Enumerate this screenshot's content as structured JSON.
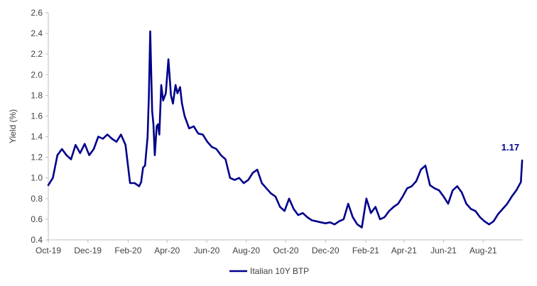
{
  "chart_data": {
    "type": "line",
    "title": "",
    "xlabel": "",
    "ylabel": "Yield (%)",
    "ylim": [
      0.4,
      2.6
    ],
    "y_ticks": [
      "0.4",
      "0.6",
      "0.8",
      "1.0",
      "1.2",
      "1.4",
      "1.6",
      "1.8",
      "2.0",
      "2.2",
      "2.4",
      "2.6"
    ],
    "x_ticks": [
      "Oct-19",
      "Dec-19",
      "Feb-20",
      "Apr-20",
      "Jun-20",
      "Aug-20",
      "Oct-20",
      "Dec-20",
      "Feb-21",
      "Apr-21",
      "Jun-21",
      "Aug-21"
    ],
    "x_range": [
      "2019-10-01",
      "2021-10-01"
    ],
    "grid": false,
    "legend": "bottom",
    "series_color": "#00008B",
    "series": [
      {
        "name": "Italian 10Y BTP",
        "x": [
          "2019-10-01",
          "2019-10-08",
          "2019-10-15",
          "2019-10-22",
          "2019-10-29",
          "2019-11-05",
          "2019-11-12",
          "2019-11-19",
          "2019-11-26",
          "2019-12-03",
          "2019-12-10",
          "2019-12-17",
          "2019-12-24",
          "2019-12-31",
          "2020-01-07",
          "2020-01-14",
          "2020-01-21",
          "2020-01-28",
          "2020-02-04",
          "2020-02-11",
          "2020-02-18",
          "2020-02-21",
          "2020-02-24",
          "2020-02-27",
          "2020-03-02",
          "2020-03-04",
          "2020-03-06",
          "2020-03-09",
          "2020-03-11",
          "2020-03-13",
          "2020-03-16",
          "2020-03-18",
          "2020-03-20",
          "2020-03-23",
          "2020-03-26",
          "2020-03-30",
          "2020-04-03",
          "2020-04-07",
          "2020-04-10",
          "2020-04-14",
          "2020-04-17",
          "2020-04-21",
          "2020-04-24",
          "2020-04-28",
          "2020-05-05",
          "2020-05-12",
          "2020-05-19",
          "2020-05-26",
          "2020-06-02",
          "2020-06-09",
          "2020-06-16",
          "2020-06-23",
          "2020-06-30",
          "2020-07-07",
          "2020-07-14",
          "2020-07-21",
          "2020-07-28",
          "2020-08-04",
          "2020-08-11",
          "2020-08-18",
          "2020-08-25",
          "2020-09-01",
          "2020-09-08",
          "2020-09-15",
          "2020-09-22",
          "2020-09-29",
          "2020-10-06",
          "2020-10-13",
          "2020-10-20",
          "2020-10-27",
          "2020-11-03",
          "2020-11-10",
          "2020-11-17",
          "2020-11-24",
          "2020-12-01",
          "2020-12-08",
          "2020-12-15",
          "2020-12-22",
          "2020-12-29",
          "2021-01-05",
          "2021-01-12",
          "2021-01-19",
          "2021-01-26",
          "2021-02-02",
          "2021-02-09",
          "2021-02-16",
          "2021-02-23",
          "2021-03-02",
          "2021-03-09",
          "2021-03-16",
          "2021-03-23",
          "2021-03-30",
          "2021-04-06",
          "2021-04-13",
          "2021-04-20",
          "2021-04-27",
          "2021-05-04",
          "2021-05-11",
          "2021-05-18",
          "2021-05-25",
          "2021-06-01",
          "2021-06-08",
          "2021-06-15",
          "2021-06-22",
          "2021-06-29",
          "2021-07-06",
          "2021-07-13",
          "2021-07-20",
          "2021-07-27",
          "2021-08-03",
          "2021-08-10",
          "2021-08-17",
          "2021-08-24",
          "2021-08-31",
          "2021-09-07",
          "2021-09-14",
          "2021-09-21",
          "2021-09-28",
          "2021-09-30"
        ],
        "y": [
          0.93,
          1.0,
          1.22,
          1.28,
          1.22,
          1.18,
          1.32,
          1.24,
          1.33,
          1.22,
          1.28,
          1.4,
          1.38,
          1.42,
          1.38,
          1.35,
          1.42,
          1.32,
          0.95,
          0.95,
          0.92,
          0.96,
          1.1,
          1.12,
          1.4,
          1.8,
          2.42,
          1.65,
          1.52,
          1.22,
          1.5,
          1.52,
          1.42,
          1.9,
          1.75,
          1.82,
          2.15,
          1.8,
          1.72,
          1.9,
          1.82,
          1.88,
          1.72,
          1.6,
          1.48,
          1.5,
          1.43,
          1.42,
          1.35,
          1.3,
          1.28,
          1.22,
          1.18,
          1.0,
          0.98,
          1.0,
          0.95,
          0.98,
          1.05,
          1.08,
          0.95,
          0.9,
          0.85,
          0.82,
          0.72,
          0.68,
          0.8,
          0.7,
          0.64,
          0.66,
          0.62,
          0.59,
          0.58,
          0.57,
          0.56,
          0.57,
          0.55,
          0.58,
          0.6,
          0.75,
          0.62,
          0.55,
          0.52,
          0.8,
          0.66,
          0.72,
          0.6,
          0.62,
          0.68,
          0.72,
          0.75,
          0.82,
          0.9,
          0.92,
          0.97,
          1.08,
          1.12,
          0.93,
          0.9,
          0.88,
          0.82,
          0.75,
          0.88,
          0.92,
          0.86,
          0.75,
          0.7,
          0.68,
          0.62,
          0.58,
          0.55,
          0.58,
          0.65,
          0.7,
          0.75,
          0.82,
          0.88,
          0.96,
          1.17
        ]
      }
    ],
    "annotations": [
      {
        "text": "1.17",
        "x": "2021-09-30",
        "y": 1.17
      }
    ]
  }
}
